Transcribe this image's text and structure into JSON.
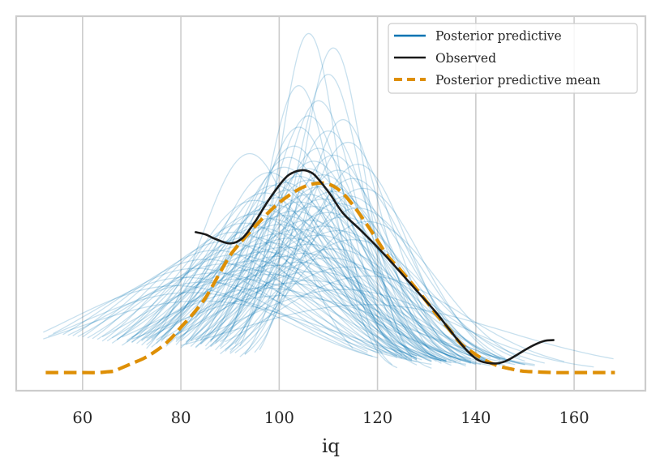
{
  "chart_data": {
    "type": "line",
    "title": "",
    "xlabel": "iq",
    "ylabel": "",
    "xlim": [
      46.5,
      174.5
    ],
    "ylim": [
      -0.0024,
      0.0472
    ],
    "xticks": [
      60,
      80,
      100,
      120,
      140,
      160
    ],
    "xtick_labels": [
      "60",
      "80",
      "100",
      "120",
      "140",
      "160"
    ],
    "yticks_visible": false,
    "grid": "vertical",
    "legend": {
      "placement": "top-right",
      "entries": [
        {
          "label": "Posterior predictive",
          "color": "#0173b2",
          "style": "solid"
        },
        {
          "label": "Observed",
          "color": "#1a1a1a",
          "style": "solid"
        },
        {
          "label": "Posterior predictive mean",
          "color": "#de8f05",
          "style": "dashed"
        }
      ]
    },
    "colors": {
      "posterior_predictive": "#0173b2",
      "observed": "#1a1a1a",
      "mean": "#de8f05",
      "grid": "#cccccc",
      "frame": "#cccccc"
    },
    "series": [
      {
        "name": "Observed",
        "x": [
          83,
          85,
          87,
          90,
          92.5,
          95,
          97.5,
          100,
          102,
          104.5,
          106.5,
          108,
          110.5,
          113,
          116.5,
          120,
          123,
          126,
          129,
          132,
          134.5,
          137,
          139,
          141,
          144,
          146,
          148,
          150,
          152,
          154,
          155.8
        ],
        "y": [
          0.0186,
          0.0183,
          0.0177,
          0.0171,
          0.0178,
          0.0199,
          0.0225,
          0.0248,
          0.0262,
          0.0268,
          0.0265,
          0.0256,
          0.0235,
          0.0211,
          0.0189,
          0.0166,
          0.0145,
          0.0123,
          0.0101,
          0.0079,
          0.0058,
          0.0038,
          0.0024,
          0.0015,
          0.0012,
          0.0015,
          0.0022,
          0.003,
          0.0037,
          0.0042,
          0.0043
        ]
      },
      {
        "name": "Posterior predictive mean",
        "x": [
          52.5,
          56,
          60,
          63,
          65,
          66.5,
          67.5,
          70,
          72.5,
          75,
          77.5,
          80,
          82.5,
          85,
          87.5,
          90,
          92.5,
          95,
          97.5,
          100,
          102.5,
          105,
          107,
          109,
          111,
          113,
          115,
          117,
          119.5,
          122,
          124.5,
          127,
          129.5,
          132,
          134.5,
          137,
          139.5,
          142,
          144.5,
          147,
          149.5,
          152,
          156,
          160,
          164,
          168.3
        ],
        "y": [
          0.0,
          0.0,
          0.0,
          0.0,
          0.0001,
          0.0002,
          0.0005,
          0.0012,
          0.0019,
          0.0029,
          0.0042,
          0.006,
          0.0078,
          0.0099,
          0.0127,
          0.0155,
          0.0175,
          0.0193,
          0.021,
          0.0225,
          0.0237,
          0.0246,
          0.025,
          0.0251,
          0.0247,
          0.0237,
          0.0222,
          0.0204,
          0.018,
          0.0155,
          0.0137,
          0.0118,
          0.0098,
          0.0077,
          0.0058,
          0.0038,
          0.0026,
          0.0016,
          0.0009,
          0.0005,
          0.0002,
          0.0001,
          0.0,
          0.0,
          0.0,
          0.0
        ]
      }
    ],
    "posterior_predictive_samples": {
      "count": 100,
      "format": "[xmin, xmax, mu, sigma, peak_density]",
      "curves": [
        [
          92,
          123,
          106,
          6.2,
          0.0449
        ],
        [
          96,
          127,
          111,
          6.5,
          0.043
        ],
        [
          93,
          128,
          110,
          7.2,
          0.0395
        ],
        [
          90,
          124,
          104,
          7.0,
          0.038
        ],
        [
          91,
          131,
          108,
          8.0,
          0.036
        ],
        [
          88,
          127,
          106,
          8.4,
          0.034
        ],
        [
          95,
          132,
          113,
          8.0,
          0.0335
        ],
        [
          86,
          125,
          104,
          8.8,
          0.0325
        ],
        [
          90,
          133,
          110,
          9.0,
          0.032
        ],
        [
          92,
          136,
          114,
          9.5,
          0.0305
        ],
        [
          84,
          128,
          103,
          9.6,
          0.03
        ],
        [
          87,
          132,
          108,
          9.8,
          0.0297
        ],
        [
          73,
          115,
          94,
          10.0,
          0.029
        ],
        [
          89,
          138,
          111,
          10.2,
          0.0288
        ],
        [
          81,
          127,
          102,
          10.5,
          0.0285
        ],
        [
          85,
          135,
          107,
          10.8,
          0.028
        ],
        [
          93,
          141,
          116,
          10.4,
          0.0276
        ],
        [
          79,
          125,
          101,
          11.0,
          0.0272
        ],
        [
          83,
          133,
          106,
          11.2,
          0.027
        ],
        [
          88,
          140,
          112,
          11.0,
          0.0268
        ],
        [
          76,
          124,
          98,
          11.4,
          0.0265
        ],
        [
          86,
          137,
          109,
          11.5,
          0.0262
        ],
        [
          80,
          131,
          104,
          11.8,
          0.026
        ],
        [
          90,
          143,
          115,
          11.6,
          0.0257
        ],
        [
          82,
          134,
          106,
          12.0,
          0.0255
        ],
        [
          78,
          128,
          101,
          12.2,
          0.0252
        ],
        [
          87,
          139,
          110,
          12.1,
          0.025
        ],
        [
          74,
          127,
          99,
          12.5,
          0.0248
        ],
        [
          84,
          137,
          108,
          12.4,
          0.0246
        ],
        [
          91,
          145,
          117,
          12.3,
          0.0244
        ],
        [
          77,
          130,
          102,
          12.7,
          0.0242
        ],
        [
          85,
          140,
          111,
          12.8,
          0.024
        ],
        [
          72,
          125,
          97,
          12.9,
          0.0238
        ],
        [
          81,
          135,
          106,
          13.0,
          0.0236
        ],
        [
          88,
          143,
          114,
          13.0,
          0.0234
        ],
        [
          75,
          131,
          100,
          13.2,
          0.0232
        ],
        [
          83,
          139,
          109,
          13.3,
          0.023
        ],
        [
          70,
          124,
          95,
          13.4,
          0.0228
        ],
        [
          79,
          136,
          104,
          13.5,
          0.0226
        ],
        [
          86,
          142,
          112,
          13.4,
          0.0224
        ],
        [
          73,
          131,
          99,
          13.7,
          0.0222
        ],
        [
          82,
          139,
          107,
          13.8,
          0.022
        ],
        [
          89,
          146,
          116,
          13.6,
          0.0218
        ],
        [
          71,
          128,
          97,
          14.0,
          0.0216
        ],
        [
          78,
          136,
          103,
          14.1,
          0.0214
        ],
        [
          84,
          142,
          110,
          14.0,
          0.0212
        ],
        [
          69,
          126,
          95,
          14.3,
          0.021
        ],
        [
          76,
          134,
          101,
          14.4,
          0.0208
        ],
        [
          87,
          145,
          113,
          14.2,
          0.0206
        ],
        [
          72,
          131,
          98,
          14.6,
          0.0204
        ],
        [
          80,
          140,
          106,
          14.7,
          0.0202
        ],
        [
          90,
          149,
          118,
          14.4,
          0.02
        ],
        [
          67,
          124,
          93,
          14.9,
          0.0198
        ],
        [
          74,
          134,
          100,
          15.0,
          0.0196
        ],
        [
          83,
          143,
          109,
          15.0,
          0.0194
        ],
        [
          68,
          128,
          96,
          15.3,
          0.0192
        ],
        [
          77,
          138,
          104,
          15.3,
          0.019
        ],
        [
          86,
          147,
          112,
          15.1,
          0.0188
        ],
        [
          64,
          122,
          91,
          15.6,
          0.0186
        ],
        [
          73,
          135,
          100,
          15.7,
          0.0184
        ],
        [
          81,
          142,
          108,
          15.6,
          0.0182
        ],
        [
          66,
          128,
          94,
          16.0,
          0.018
        ],
        [
          75,
          139,
          102,
          16.0,
          0.0178
        ],
        [
          88,
          150,
          115,
          15.8,
          0.0176
        ],
        [
          62,
          121,
          89,
          16.4,
          0.0174
        ],
        [
          70,
          134,
          98,
          16.4,
          0.0172
        ],
        [
          79,
          143,
          106,
          16.3,
          0.017
        ],
        [
          65,
          129,
          93,
          16.8,
          0.0168
        ],
        [
          74,
          139,
          101,
          16.8,
          0.0166
        ],
        [
          84,
          149,
          111,
          16.6,
          0.0164
        ],
        [
          60,
          120,
          87,
          17.2,
          0.0162
        ],
        [
          69,
          134,
          97,
          17.2,
          0.016
        ],
        [
          78,
          145,
          105,
          17.1,
          0.0158
        ],
        [
          63,
          128,
          91,
          17.6,
          0.0156
        ],
        [
          72,
          140,
          100,
          17.6,
          0.0154
        ],
        [
          82,
          150,
          110,
          17.4,
          0.0152
        ],
        [
          58,
          118,
          85,
          18.0,
          0.015
        ],
        [
          67,
          133,
          95,
          18.0,
          0.0148
        ],
        [
          76,
          146,
          104,
          18.0,
          0.0146
        ],
        [
          61,
          127,
          89,
          18.5,
          0.0144
        ],
        [
          71,
          141,
          99,
          18.5,
          0.0142
        ],
        [
          86,
          154,
          114,
          18.2,
          0.014
        ],
        [
          56,
          118,
          83,
          19.0,
          0.0138
        ],
        [
          66,
          134,
          94,
          19.0,
          0.0136
        ],
        [
          79,
          150,
          107,
          19.0,
          0.0134
        ],
        [
          59,
          126,
          87,
          19.6,
          0.0132
        ],
        [
          70,
          143,
          98,
          19.6,
          0.013
        ],
        [
          89,
          158,
          118,
          19.2,
          0.0128
        ],
        [
          54,
          119,
          81,
          20.2,
          0.0126
        ],
        [
          64,
          135,
          92,
          20.2,
          0.0124
        ],
        [
          77,
          152,
          106,
          20.2,
          0.0122
        ],
        [
          57,
          128,
          85,
          21.0,
          0.012
        ],
        [
          73,
          148,
          102,
          21.0,
          0.0118
        ],
        [
          52,
          120,
          79,
          21.8,
          0.0115
        ],
        [
          68,
          145,
          97,
          22.0,
          0.0112
        ],
        [
          83,
          164,
          113,
          22.0,
          0.011
        ],
        [
          53,
          131,
          82,
          23.0,
          0.0106
        ],
        [
          70,
          152,
          101,
          24.0,
          0.0102
        ],
        [
          52,
          138,
          84,
          26.0,
          0.0095
        ],
        [
          80,
          168,
          118,
          28.0,
          0.009
        ]
      ]
    }
  }
}
